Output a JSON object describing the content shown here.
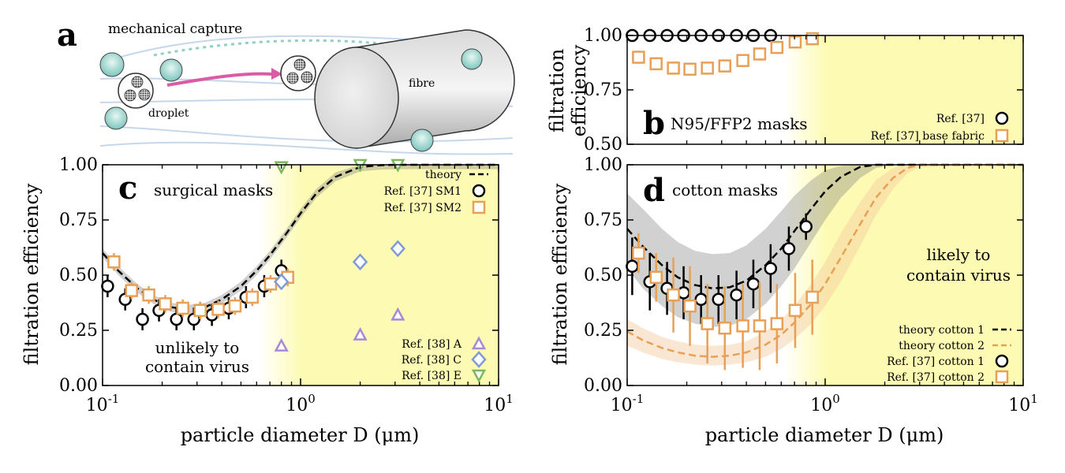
{
  "colors": {
    "black": "#000000",
    "orange": "#e8a056",
    "blue": "#7f9ad9",
    "purple": "#a889d6",
    "green": "#7ab85c",
    "band_gray": "#7a7a7a",
    "band_orange": "#f4c99d",
    "shade_yellow": "#fdfbb3",
    "pink": "#d85ca6",
    "teal": "#7bc6bd"
  },
  "sketch": {
    "panel_label": "a",
    "title": "mechanical capture",
    "droplet_label": "droplet",
    "fibre_label": "fibre"
  },
  "panels": {
    "b": {
      "label": "b",
      "title": "N95/FFP2 masks"
    },
    "c": {
      "label": "c",
      "title": "surgical masks",
      "note": [
        "unlikely to",
        "contain virus"
      ]
    },
    "d": {
      "label": "d",
      "title": "cotton masks",
      "note": [
        "likely to",
        "contain virus"
      ]
    }
  },
  "chart_data": [
    {
      "id": "b",
      "type": "scatter",
      "xlabel": "",
      "ylabel": "filtration efficiency",
      "xscale": "log",
      "xlim": [
        0.1,
        10
      ],
      "ylim": [
        0.5,
        1.0
      ],
      "yticks": [
        "0.50",
        "0.75",
        "1.00"
      ],
      "shaded_from_x": 1.0,
      "legend": {
        "placement": "bottom-right",
        "entries": [
          "Ref. [37]",
          "Ref. [37] base fabric"
        ]
      },
      "series": [
        {
          "name": "Ref. [37]",
          "marker": "circle",
          "color": "#000000",
          "x": [
            0.11,
            0.135,
            0.165,
            0.2,
            0.245,
            0.3,
            0.37,
            0.45,
            0.55
          ],
          "y": [
            1.0,
            1.0,
            1.0,
            1.0,
            1.0,
            1.0,
            1.0,
            1.0,
            1.0
          ],
          "err": [
            0.01,
            0.01,
            0.01,
            0.01,
            0.01,
            0.01,
            0.01,
            0.01,
            0.01
          ]
        },
        {
          "name": "Ref. [37] base fabric",
          "marker": "square",
          "color": "#e8a056",
          "x": [
            0.11,
            0.135,
            0.165,
            0.2,
            0.245,
            0.3,
            0.37,
            0.45,
            0.55,
            0.68,
            0.83
          ],
          "y": [
            0.9,
            0.87,
            0.85,
            0.845,
            0.85,
            0.86,
            0.885,
            0.915,
            0.945,
            0.97,
            0.985
          ],
          "err": [
            0.03,
            0.03,
            0.03,
            0.03,
            0.03,
            0.03,
            0.03,
            0.03,
            0.03,
            0.03,
            0.02
          ]
        }
      ]
    },
    {
      "id": "c",
      "type": "scatter",
      "xlabel": "particle diameter D (μm)",
      "ylabel": "filtration efficiency",
      "xscale": "log",
      "xlim": [
        0.1,
        10
      ],
      "ylim": [
        0,
        1.0
      ],
      "xticks": [
        0.1,
        1,
        10
      ],
      "yticks": [
        "0.00",
        "0.25",
        "0.50",
        "0.75",
        "1.00"
      ],
      "shaded_from_x": 1.0,
      "legend": {
        "placement": "top-right",
        "entries": [
          "theory",
          "Ref. [37] SM1",
          "Ref. [37] SM2"
        ]
      },
      "legend2": {
        "placement": "bottom-right",
        "entries": [
          "Ref. [38] A",
          "Ref. [38] C",
          "Ref. [38] E"
        ]
      },
      "theory": [
        {
          "name": "theory",
          "color": "#000000",
          "x": [
            0.1,
            0.12,
            0.15,
            0.18,
            0.22,
            0.27,
            0.33,
            0.4,
            0.5,
            0.6,
            0.7,
            0.85,
            1.0,
            1.2,
            1.5,
            2.0,
            2.5,
            3.0,
            4.0,
            10.0
          ],
          "y": [
            0.6,
            0.52,
            0.44,
            0.39,
            0.355,
            0.345,
            0.355,
            0.39,
            0.45,
            0.52,
            0.59,
            0.69,
            0.78,
            0.87,
            0.945,
            0.99,
            0.998,
            1.0,
            1.0,
            1.0
          ],
          "band": 0.02
        }
      ],
      "series": [
        {
          "name": "Ref. [37] SM1",
          "marker": "circle",
          "color": "#000000",
          "x": [
            0.11,
            0.135,
            0.165,
            0.2,
            0.245,
            0.3,
            0.37,
            0.45,
            0.55,
            0.68,
            0.83
          ],
          "y": [
            0.45,
            0.39,
            0.3,
            0.34,
            0.3,
            0.3,
            0.32,
            0.35,
            0.4,
            0.45,
            0.52
          ],
          "err": [
            0.05,
            0.05,
            0.05,
            0.05,
            0.05,
            0.05,
            0.05,
            0.05,
            0.05,
            0.05,
            0.05
          ]
        },
        {
          "name": "Ref. [37] SM2",
          "marker": "square",
          "color": "#e8a056",
          "x": [
            0.11,
            0.135,
            0.165,
            0.2,
            0.245,
            0.3,
            0.37,
            0.45,
            0.55,
            0.68,
            0.83
          ],
          "y": [
            0.56,
            0.43,
            0.41,
            0.37,
            0.35,
            0.34,
            0.345,
            0.36,
            0.4,
            0.46,
            0.49
          ],
          "err": [
            0.04,
            0.04,
            0.04,
            0.04,
            0.04,
            0.04,
            0.04,
            0.04,
            0.04,
            0.04,
            0.04
          ]
        },
        {
          "name": "Ref. [38] A",
          "marker": "triangle-up",
          "color": "#a889d6",
          "x": [
            0.8,
            2.0,
            3.1
          ],
          "y": [
            0.18,
            0.23,
            0.32
          ]
        },
        {
          "name": "Ref. [38] C",
          "marker": "diamond",
          "color": "#7f9ad9",
          "x": [
            0.8,
            2.0,
            3.1
          ],
          "y": [
            0.47,
            0.56,
            0.62
          ]
        },
        {
          "name": "Ref. [38] E",
          "marker": "triangle-down",
          "color": "#7ab85c",
          "x": [
            0.8,
            2.0,
            3.1
          ],
          "y": [
            0.99,
            1.0,
            1.0
          ]
        }
      ]
    },
    {
      "id": "d",
      "type": "scatter",
      "xlabel": "particle diameter D (μm)",
      "ylabel": "filtration efficiency",
      "xscale": "log",
      "xlim": [
        0.1,
        10
      ],
      "ylim": [
        0,
        1.0
      ],
      "xticks": [
        0.1,
        1,
        10
      ],
      "yticks": [
        "0.00",
        "0.25",
        "0.50",
        "0.75",
        "1.00"
      ],
      "shaded_from_x": 1.0,
      "legend": {
        "placement": "bottom-right",
        "entries": [
          "theory cotton 1",
          "theory cotton 2",
          "Ref. [37] cotton 1",
          "Ref. [37] cotton 2"
        ]
      },
      "theory": [
        {
          "name": "theory cotton 1",
          "color": "#000000",
          "x": [
            0.1,
            0.12,
            0.15,
            0.18,
            0.22,
            0.27,
            0.33,
            0.4,
            0.5,
            0.6,
            0.7,
            0.85,
            1.0,
            1.2,
            1.5,
            1.8,
            2.2,
            3.0,
            10.0
          ],
          "y": [
            0.71,
            0.63,
            0.545,
            0.49,
            0.455,
            0.44,
            0.445,
            0.475,
            0.545,
            0.62,
            0.7,
            0.8,
            0.88,
            0.945,
            0.99,
            1.0,
            1.0,
            1.0,
            1.0
          ],
          "band_lo": [
            0.53,
            0.44,
            0.36,
            0.31,
            0.28,
            0.265,
            0.27,
            0.3,
            0.37,
            0.45,
            0.53,
            0.65,
            0.75,
            0.85,
            0.94,
            0.985,
            1.0,
            1.0,
            1.0
          ],
          "band_hi": [
            0.87,
            0.8,
            0.71,
            0.65,
            0.61,
            0.595,
            0.6,
            0.635,
            0.71,
            0.79,
            0.86,
            0.93,
            0.975,
            0.995,
            1.0,
            1.0,
            1.0,
            1.0,
            1.0
          ]
        },
        {
          "name": "theory cotton 2",
          "color": "#e8a056",
          "x": [
            0.1,
            0.12,
            0.15,
            0.18,
            0.22,
            0.27,
            0.33,
            0.4,
            0.5,
            0.6,
            0.7,
            0.85,
            1.0,
            1.2,
            1.5,
            1.8,
            2.2,
            2.6,
            3.0,
            10.0
          ],
          "y": [
            0.245,
            0.205,
            0.17,
            0.15,
            0.135,
            0.13,
            0.135,
            0.15,
            0.185,
            0.23,
            0.285,
            0.37,
            0.46,
            0.58,
            0.73,
            0.85,
            0.94,
            0.985,
            1.0,
            1.0
          ],
          "band_lo": [
            0.18,
            0.15,
            0.12,
            0.105,
            0.095,
            0.09,
            0.095,
            0.105,
            0.13,
            0.165,
            0.21,
            0.28,
            0.36,
            0.47,
            0.63,
            0.77,
            0.89,
            0.96,
            0.99,
            1.0
          ],
          "band_hi": [
            0.3,
            0.26,
            0.22,
            0.2,
            0.185,
            0.18,
            0.185,
            0.2,
            0.245,
            0.3,
            0.36,
            0.46,
            0.56,
            0.69,
            0.83,
            0.93,
            0.985,
            1.0,
            1.0,
            1.0
          ]
        }
      ],
      "series": [
        {
          "name": "Ref. [37] cotton 1",
          "marker": "circle",
          "color": "#000000",
          "x": [
            0.11,
            0.135,
            0.165,
            0.2,
            0.245,
            0.3,
            0.37,
            0.45,
            0.55,
            0.68,
            0.83
          ],
          "y": [
            0.54,
            0.47,
            0.44,
            0.42,
            0.39,
            0.39,
            0.41,
            0.46,
            0.53,
            0.62,
            0.72
          ],
          "err": [
            0.13,
            0.13,
            0.12,
            0.12,
            0.11,
            0.11,
            0.11,
            0.11,
            0.11,
            0.1,
            0.06
          ]
        },
        {
          "name": "Ref. [37] cotton 2",
          "marker": "square",
          "color": "#e8a056",
          "x": [
            0.11,
            0.135,
            0.165,
            0.2,
            0.245,
            0.3,
            0.37,
            0.45,
            0.55,
            0.68,
            0.83
          ],
          "y": [
            0.6,
            0.49,
            0.41,
            0.36,
            0.28,
            0.26,
            0.27,
            0.27,
            0.28,
            0.34,
            0.4
          ],
          "err": [
            0.09,
            0.11,
            0.17,
            0.18,
            0.18,
            0.19,
            0.19,
            0.2,
            0.18,
            0.17,
            0.17
          ]
        }
      ]
    }
  ]
}
